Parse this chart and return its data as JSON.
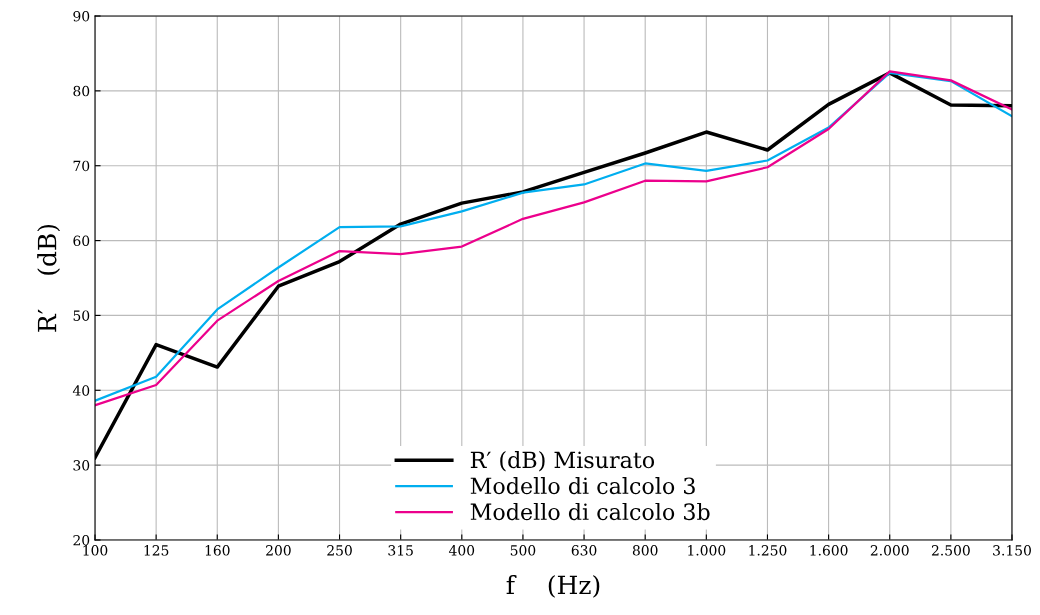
{
  "chart_data": {
    "type": "line",
    "xlabel": "f    (Hz)",
    "ylabel": "R′    (dB)",
    "categories": [
      "100",
      "125",
      "160",
      "200",
      "250",
      "315",
      "400",
      "500",
      "630",
      "800",
      "1.000",
      "1.250",
      "1.600",
      "2.000",
      "2.500",
      "3.150"
    ],
    "series": [
      {
        "name": "R′ (dB) Misurato",
        "color": "#000000",
        "values": [
          31.0,
          46.1,
          43.1,
          53.9,
          57.2,
          62.2,
          65.0,
          66.5,
          69.1,
          71.7,
          74.5,
          72.1,
          78.2,
          82.4,
          78.1,
          78.0
        ]
      },
      {
        "name": "Modello di calcolo 3",
        "color": "#00aeef",
        "values": [
          38.6,
          41.8,
          50.8,
          56.4,
          61.8,
          61.9,
          63.9,
          66.4,
          67.5,
          70.3,
          69.3,
          70.7,
          75.1,
          82.4,
          81.3,
          76.6
        ]
      },
      {
        "name": "Modello di calcolo 3b",
        "color": "#ec008c",
        "values": [
          38.0,
          40.7,
          49.3,
          54.6,
          58.6,
          58.2,
          59.2,
          62.9,
          65.1,
          68.0,
          67.9,
          69.8,
          74.9,
          82.6,
          81.4,
          77.5
        ]
      }
    ],
    "ylim": [
      20,
      90
    ],
    "yticks": [
      20,
      30,
      40,
      50,
      60,
      70,
      80,
      90
    ],
    "grid": true,
    "legend": "bottom",
    "marker": "none",
    "line_style": "solid"
  }
}
